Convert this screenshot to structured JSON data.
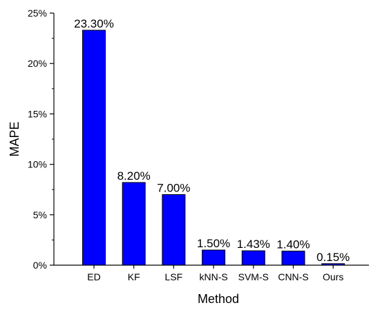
{
  "chart_data": {
    "type": "bar",
    "title": "",
    "xlabel": "Method",
    "ylabel": "MAPE",
    "categories": [
      "ED",
      "KF",
      "LSF",
      "kNN-S",
      "SVM-S",
      "CNN-S",
      "Ours"
    ],
    "values": [
      23.3,
      8.2,
      7.0,
      1.5,
      1.43,
      1.4,
      0.15
    ],
    "data_labels": [
      "23.30%",
      "8.20%",
      "7.00%",
      "1.50%",
      "1.43%",
      "1.40%",
      "0.15%"
    ],
    "ylim": [
      0,
      25
    ],
    "yticks": [
      0,
      5,
      10,
      15,
      20,
      25
    ],
    "ytick_labels": [
      "0%",
      "5%",
      "10%",
      "15%",
      "20%",
      "25%"
    ],
    "grid": false,
    "legend": "none",
    "bar_color": "#0000ff",
    "bar_edge_color": "#000000"
  }
}
